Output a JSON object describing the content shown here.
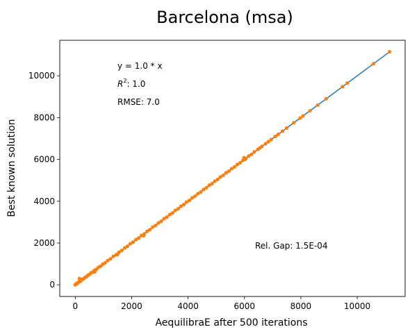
{
  "chart_data": {
    "type": "scatter",
    "title": "Barcelona (msa)",
    "xlabel": "AequilibraE after 500 iterations",
    "ylabel": "Best known solution",
    "xlim": [
      -550,
      11700
    ],
    "ylim": [
      -560,
      11700
    ],
    "xticks": [
      0,
      2000,
      4000,
      6000,
      8000,
      10000
    ],
    "yticks": [
      0,
      2000,
      4000,
      6000,
      8000,
      10000
    ],
    "grid": false,
    "annotations": {
      "equation": "y = 1.0 * x",
      "r2_label": "R",
      "r2_sup": "2",
      "r2_value": ":  1.0",
      "rmse": "RMSE: 7.0",
      "rel_gap": "Rel. Gap: 1.5E-04"
    },
    "series": [
      {
        "kind": "line",
        "color": "#1f77b4",
        "x": [
          0,
          11150
        ],
        "y": [
          0,
          11150
        ]
      },
      {
        "kind": "points",
        "color": "#ff7f0e",
        "x": [
          0,
          20,
          40,
          60,
          90,
          120,
          150,
          180,
          200,
          250,
          300,
          350,
          400,
          450,
          500,
          560,
          620,
          680,
          750,
          820,
          900,
          980,
          1060,
          1150,
          1250,
          1350,
          1450,
          1550,
          1650,
          1750,
          1850,
          1950,
          2050,
          2150,
          2250,
          2350,
          2450,
          2550,
          2650,
          2750,
          2850,
          2950,
          3050,
          3150,
          3250,
          3350,
          3450,
          3550,
          3650,
          3750,
          3850,
          3950,
          4050,
          4150,
          4250,
          4350,
          4450,
          4550,
          4650,
          4750,
          4850,
          4950,
          5050,
          5150,
          5250,
          5350,
          5450,
          5550,
          5650,
          5750,
          5850,
          5950,
          6050,
          6150,
          6250,
          6350,
          6480,
          6550,
          6620,
          6750,
          6850,
          6950,
          7100,
          7200,
          7350,
          7500,
          7750,
          7980,
          8080,
          8330,
          8600,
          8900,
          9480,
          9650,
          10580,
          11150,
          150,
          200,
          2430,
          5990,
          6020,
          1500,
          690
        ],
        "y": [
          0,
          30,
          60,
          50,
          100,
          110,
          160,
          170,
          230,
          260,
          290,
          360,
          390,
          460,
          490,
          570,
          610,
          690,
          740,
          830,
          890,
          990,
          1050,
          1160,
          1240,
          1360,
          1440,
          1560,
          1640,
          1760,
          1840,
          1960,
          2040,
          2160,
          2240,
          2360,
          2440,
          2560,
          2640,
          2760,
          2840,
          2960,
          3040,
          3160,
          3240,
          3360,
          3440,
          3560,
          3640,
          3760,
          3840,
          3960,
          4040,
          4160,
          4240,
          4360,
          4440,
          4560,
          4640,
          4760,
          4840,
          4960,
          5040,
          5160,
          5240,
          5360,
          5440,
          5560,
          5640,
          5760,
          5840,
          5960,
          6040,
          6160,
          6240,
          6360,
          6480,
          6550,
          6620,
          6750,
          6850,
          6950,
          7100,
          7200,
          7350,
          7500,
          7750,
          7980,
          8080,
          8330,
          8600,
          8900,
          9480,
          9650,
          10580,
          11150,
          300,
          200,
          2350,
          6080,
          6000,
          1450,
          620
        ]
      }
    ]
  }
}
